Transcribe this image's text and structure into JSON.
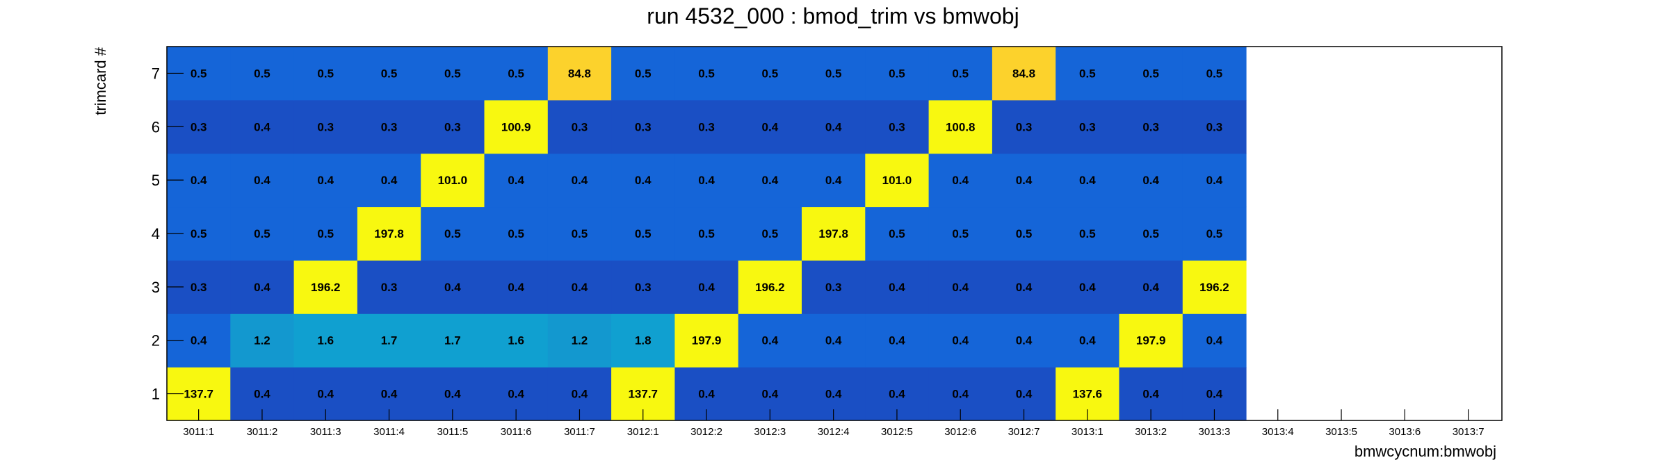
{
  "chart_data": {
    "type": "heatmap",
    "title": "run 4532_000 : bmod_trim vs bmwobj",
    "xlabel": "bmwcycnum:bmwobj",
    "ylabel": "trimcard #",
    "x_categories": [
      "3011:1",
      "3011:2",
      "3011:3",
      "3011:4",
      "3011:5",
      "3011:6",
      "3011:7",
      "3012:1",
      "3012:2",
      "3012:3",
      "3012:4",
      "3012:5",
      "3012:6",
      "3012:7",
      "3013:1",
      "3013:2",
      "3013:3",
      "3013:4",
      "3013:5",
      "3013:6",
      "3013:7"
    ],
    "y_categories": [
      "1",
      "2",
      "3",
      "4",
      "5",
      "6",
      "7"
    ],
    "values": [
      [
        "137.7",
        "0.4",
        "0.4",
        "0.4",
        "0.4",
        "0.4",
        "0.4",
        "137.7",
        "0.4",
        "0.4",
        "0.4",
        "0.4",
        "0.4",
        "0.4",
        "137.6",
        "0.4",
        "0.4",
        null,
        null,
        null,
        null
      ],
      [
        "0.4",
        "1.2",
        "1.6",
        "1.7",
        "1.7",
        "1.6",
        "1.2",
        "1.8",
        "197.9",
        "0.4",
        "0.4",
        "0.4",
        "0.4",
        "0.4",
        "0.4",
        "197.9",
        "0.4",
        null,
        null,
        null,
        null
      ],
      [
        "0.3",
        "0.4",
        "196.2",
        "0.3",
        "0.4",
        "0.4",
        "0.4",
        "0.3",
        "0.4",
        "196.2",
        "0.3",
        "0.4",
        "0.4",
        "0.4",
        "0.4",
        "0.4",
        "196.2",
        null,
        null,
        null,
        null
      ],
      [
        "0.5",
        "0.5",
        "0.5",
        "197.8",
        "0.5",
        "0.5",
        "0.5",
        "0.5",
        "0.5",
        "0.5",
        "197.8",
        "0.5",
        "0.5",
        "0.5",
        "0.5",
        "0.5",
        "0.5",
        null,
        null,
        null,
        null
      ],
      [
        "0.4",
        "0.4",
        "0.4",
        "0.4",
        "101.0",
        "0.4",
        "0.4",
        "0.4",
        "0.4",
        "0.4",
        "0.4",
        "101.0",
        "0.4",
        "0.4",
        "0.4",
        "0.4",
        "0.4",
        null,
        null,
        null,
        null
      ],
      [
        "0.3",
        "0.4",
        "0.3",
        "0.3",
        "0.3",
        "100.9",
        "0.3",
        "0.3",
        "0.3",
        "0.4",
        "0.4",
        "0.3",
        "100.8",
        "0.3",
        "0.3",
        "0.3",
        "0.3",
        null,
        null,
        null,
        null
      ],
      [
        "0.5",
        "0.5",
        "0.5",
        "0.5",
        "0.5",
        "0.5",
        "84.8",
        "0.5",
        "0.5",
        "0.5",
        "0.5",
        "0.5",
        "0.5",
        "84.8",
        "0.5",
        "0.5",
        "0.5",
        null,
        null,
        null,
        null
      ]
    ],
    "colors": {
      "low_dark": "#1a4fc4",
      "low": "#1565d8",
      "mid_low": "#1398cf",
      "mid": "#10a0d0",
      "high_orange": "#fcd22c",
      "high_yellow": "#f8f810",
      "frame": "#000000"
    },
    "grid": false,
    "legend": "none"
  }
}
